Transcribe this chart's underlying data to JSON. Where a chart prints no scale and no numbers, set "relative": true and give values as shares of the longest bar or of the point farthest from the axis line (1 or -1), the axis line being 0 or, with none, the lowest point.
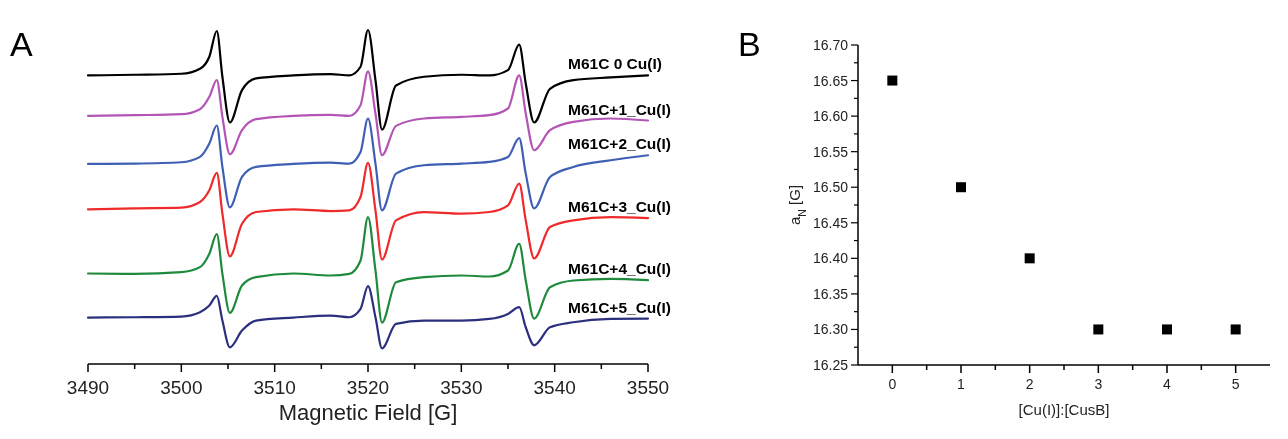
{
  "chart_data": [
    {
      "type": "line",
      "title": "A",
      "xlabel": "Magnetic Field [G]",
      "relative": true,
      "legend": false,
      "x": [
        3490,
        3495,
        3500,
        3502,
        3503,
        3503.8,
        3504.4,
        3505.2,
        3506.5,
        3508,
        3512,
        3516,
        3518,
        3519.2,
        3520,
        3520.8,
        3521.5,
        3523,
        3526,
        3530,
        3533,
        3535,
        3536.2,
        3536.9,
        3537.8,
        3539.5,
        3542,
        3546,
        3550
      ],
      "xlim": [
        3490,
        3550
      ],
      "xticks": [
        3490,
        {
          "value": 3495,
          "label": null
        },
        3500,
        {
          "value": 3505,
          "label": null
        },
        3510,
        {
          "value": 3515,
          "label": null
        },
        3520,
        {
          "value": 3525,
          "label": null
        },
        3530,
        {
          "value": 3535,
          "label": null
        },
        3540,
        {
          "value": 3545,
          "label": null
        },
        3550
      ],
      "series": [
        {
          "name": "M61C 0 Cu(I)",
          "color": "#000000",
          "values": [
            0.864,
            0.866,
            0.869,
            0.884,
            0.92,
            0.997,
            0.86,
            0.723,
            0.82,
            0.855,
            0.864,
            0.868,
            0.864,
            0.89,
            1.0,
            0.85,
            0.702,
            0.834,
            0.86,
            0.866,
            0.864,
            0.88,
            0.956,
            0.84,
            0.723,
            0.824,
            0.85,
            0.858,
            0.864
          ]
        },
        {
          "name": "M61C+1_Cu(I)",
          "color": "#b455b6",
          "values": [
            0.743,
            0.745,
            0.748,
            0.763,
            0.8,
            0.85,
            0.74,
            0.628,
            0.7,
            0.733,
            0.743,
            0.746,
            0.743,
            0.775,
            0.876,
            0.75,
            0.625,
            0.713,
            0.735,
            0.74,
            0.745,
            0.765,
            0.864,
            0.75,
            0.64,
            0.7,
            0.725,
            0.735,
            0.729
          ]
        },
        {
          "name": "M61C+2_Cu(I)",
          "color": "#3f5fb5",
          "values": [
            0.599,
            0.6,
            0.604,
            0.62,
            0.66,
            0.714,
            0.59,
            0.469,
            0.56,
            0.59,
            0.599,
            0.603,
            0.6,
            0.635,
            0.735,
            0.6,
            0.46,
            0.57,
            0.595,
            0.6,
            0.605,
            0.62,
            0.676,
            0.57,
            0.466,
            0.56,
            0.59,
            0.61,
            0.625
          ]
        },
        {
          "name": "M61C+3_Cu(I)",
          "color": "#ee2a2a",
          "values": [
            0.463,
            0.466,
            0.468,
            0.485,
            0.52,
            0.572,
            0.45,
            0.322,
            0.42,
            0.455,
            0.463,
            0.458,
            0.46,
            0.5,
            0.602,
            0.46,
            0.313,
            0.43,
            0.455,
            0.45,
            0.455,
            0.475,
            0.54,
            0.43,
            0.316,
            0.41,
            0.43,
            0.44,
            0.437
          ]
        },
        {
          "name": "M61C+4_Cu(I)",
          "color": "#1f8a3c",
          "values": [
            0.271,
            0.27,
            0.275,
            0.29,
            0.33,
            0.389,
            0.27,
            0.153,
            0.235,
            0.26,
            0.271,
            0.265,
            0.27,
            0.31,
            0.44,
            0.28,
            0.124,
            0.245,
            0.26,
            0.265,
            0.262,
            0.28,
            0.36,
            0.25,
            0.136,
            0.23,
            0.25,
            0.255,
            0.251
          ]
        },
        {
          "name": "M61C+5_Cu(I)",
          "color": "#2b2f7e",
          "values": [
            0.139,
            0.14,
            0.142,
            0.155,
            0.175,
            0.204,
            0.13,
            0.05,
            0.1,
            0.13,
            0.139,
            0.145,
            0.14,
            0.165,
            0.233,
            0.14,
            0.047,
            0.12,
            0.13,
            0.13,
            0.135,
            0.15,
            0.17,
            0.11,
            0.056,
            0.11,
            0.125,
            0.135,
            0.136
          ]
        }
      ]
    },
    {
      "type": "scatter",
      "title": "B",
      "xlabel": "[Cu(I)]:[CusB]",
      "ylabel": "a$_{N}$ [G]",
      "marker": "square",
      "x": [
        0,
        1,
        2,
        3,
        4,
        5
      ],
      "series": [
        {
          "color": "#000000",
          "values": [
            16.65,
            16.5,
            16.4,
            16.3,
            16.3,
            16.3
          ]
        }
      ],
      "xlim": [
        -0.5,
        5.5
      ],
      "xticks": [
        0,
        {
          "value": 0.5,
          "label": null
        },
        1,
        {
          "value": 1.5,
          "label": null
        },
        2,
        {
          "value": 2.5,
          "label": null
        },
        3,
        {
          "value": 3.5,
          "label": null
        },
        4,
        {
          "value": 4.5,
          "label": null
        },
        5
      ],
      "ylim": [
        16.25,
        16.7
      ],
      "yticks": [
        {
          "value": 16.25,
          "label": "16.25"
        },
        {
          "value": 16.275,
          "label": null
        },
        {
          "value": 16.3,
          "label": "16.30"
        },
        {
          "value": 16.325,
          "label": null
        },
        {
          "value": 16.35,
          "label": "16.35"
        },
        {
          "value": 16.375,
          "label": null
        },
        {
          "value": 16.4,
          "label": "16.40"
        },
        {
          "value": 16.425,
          "label": null
        },
        {
          "value": 16.45,
          "label": "16.45"
        },
        {
          "value": 16.475,
          "label": null
        },
        {
          "value": 16.5,
          "label": "16.50"
        },
        {
          "value": 16.525,
          "label": null
        },
        {
          "value": 16.55,
          "label": "16.55"
        },
        {
          "value": 16.575,
          "label": null
        },
        {
          "value": 16.6,
          "label": "16.60"
        },
        {
          "value": 16.625,
          "label": null
        },
        {
          "value": 16.65,
          "label": "16.65"
        },
        {
          "value": 16.675,
          "label": null
        },
        {
          "value": 16.7,
          "label": "16.70"
        }
      ]
    }
  ]
}
